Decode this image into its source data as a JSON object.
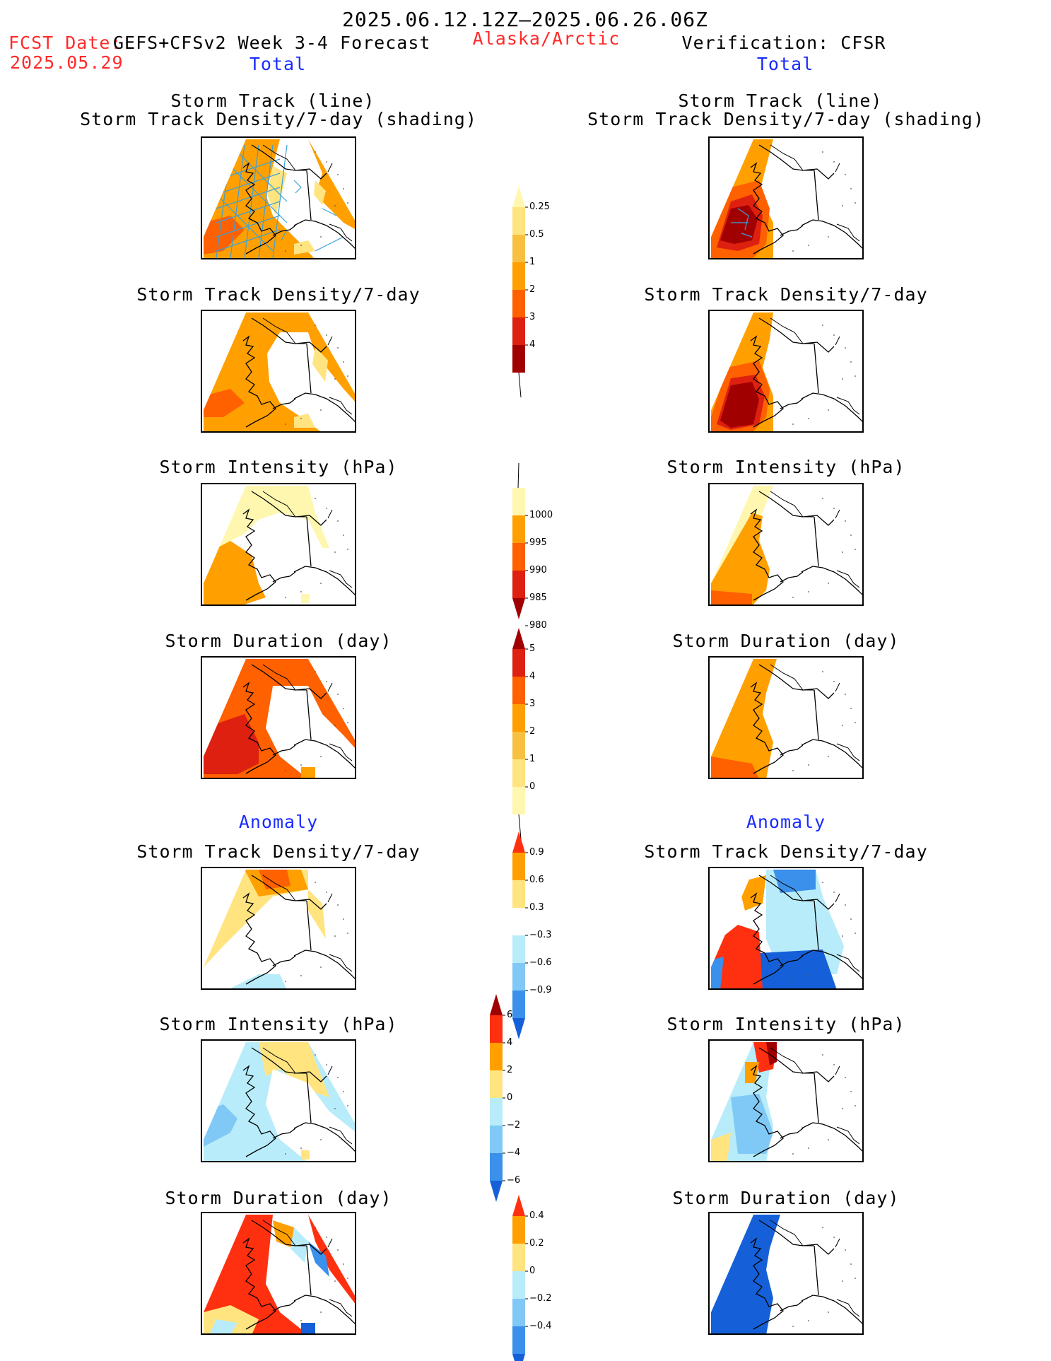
{
  "header": {
    "period": "2025.06.12.12Z–2025.06.26.06Z",
    "fcst_label": "FCST Date:",
    "fcst_date": "2025.05.29",
    "model": "GEFS+CFSv2 Week 3-4 Forecast",
    "region": "Alaska/Arctic",
    "verification": "Verification: CFSR"
  },
  "sections": {
    "total_left": "Total",
    "total_right": "Total",
    "anomaly_left": "Anomaly",
    "anomaly_right": "Anomaly"
  },
  "panel_titles": {
    "track_line": "Storm Track (line)",
    "track_shading": "Storm Track Density/7-day (shading)",
    "density": "Storm Track Density/7-day",
    "intensity": "Storm Intensity (hPa)",
    "duration": "Storm Duration (day)"
  },
  "colorbars": {
    "density_total": {
      "ticks": [
        "0.25",
        "0.5",
        "1",
        "2",
        "3",
        "4"
      ],
      "colors": [
        "#fff7b0",
        "#ffe480",
        "#f7c040",
        "#ffa000",
        "#ff6000",
        "#dd2010",
        "#a00000"
      ]
    },
    "intensity_total": {
      "ticks": [
        "1000",
        "995",
        "990",
        "985",
        "980"
      ],
      "colors": [
        "#fff7b0",
        "#ffa000",
        "#ff6000",
        "#dd2010",
        "#a00000"
      ]
    },
    "duration_total": {
      "ticks": [
        "5",
        "4",
        "3",
        "2",
        "1",
        "0"
      ],
      "colors": [
        "#a00000",
        "#dd2010",
        "#ff6000",
        "#ffa000",
        "#f7c040",
        "#ffe480",
        "#fff7b0"
      ]
    },
    "density_anom": {
      "ticks": [
        "0.9",
        "0.6",
        "0.3",
        "−0.3",
        "−0.6",
        "−0.9"
      ],
      "colors": [
        "#ff3010",
        "#ffa000",
        "#ffe480",
        "#ffffff",
        "#b8ecfa",
        "#80c8f5",
        "#3a90ea",
        "#1560d8"
      ]
    },
    "intensity_anom": {
      "ticks": [
        "6",
        "4",
        "2",
        "0",
        "−2",
        "−4",
        "−6"
      ],
      "colors": [
        "#a00000",
        "#ff3010",
        "#ffa000",
        "#ffe480",
        "#b8ecfa",
        "#80c8f5",
        "#3a90ea",
        "#1560d8"
      ]
    },
    "duration_anom": {
      "ticks": [
        "0.4",
        "0.2",
        "0",
        "−0.2",
        "−0.4"
      ],
      "colors": [
        "#ff3010",
        "#ffa000",
        "#ffe480",
        "#b8ecfa",
        "#80c8f5",
        "#3a90ea",
        "#1560d8"
      ]
    }
  },
  "colors": {
    "title_red": "#ff2a2a",
    "label_blue": "#1a2cff"
  }
}
